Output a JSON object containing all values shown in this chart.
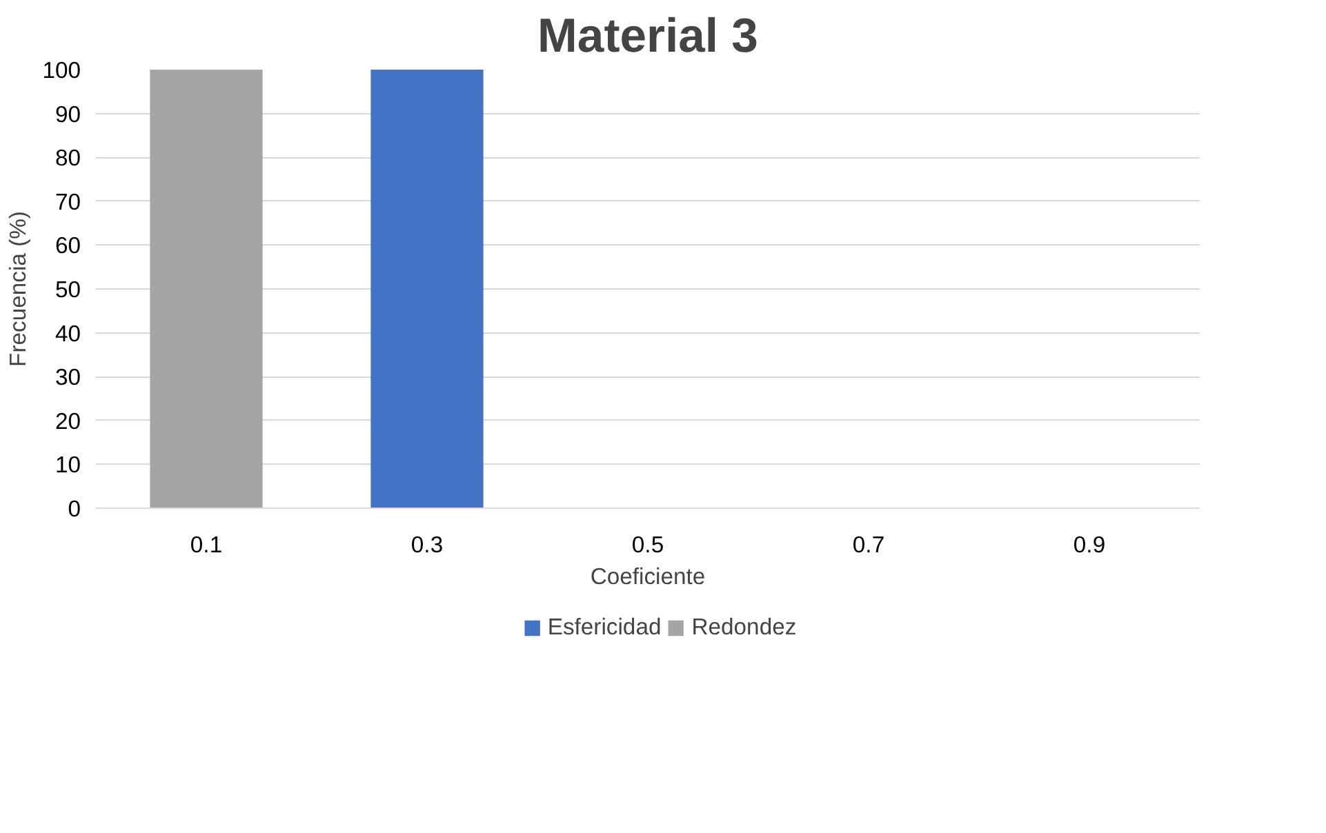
{
  "chart_data": {
    "type": "bar",
    "title": "Material 3",
    "xlabel": "Coeficiente",
    "ylabel": "Frecuencia (%)",
    "categories": [
      "0.1",
      "0.3",
      "0.5",
      "0.7",
      "0.9"
    ],
    "series": [
      {
        "name": "Esfericidad",
        "color": "#4472c4",
        "values": [
          0,
          100,
          0,
          0,
          0
        ]
      },
      {
        "name": "Redondez",
        "color": "#a5a5a5",
        "values": [
          100,
          0,
          0,
          0,
          0
        ]
      }
    ],
    "stacked": true,
    "ylim": [
      0,
      100
    ],
    "yticks": [
      0,
      10,
      20,
      30,
      40,
      50,
      60,
      70,
      80,
      90,
      100
    ],
    "grid": "y",
    "legend": "bottom"
  }
}
